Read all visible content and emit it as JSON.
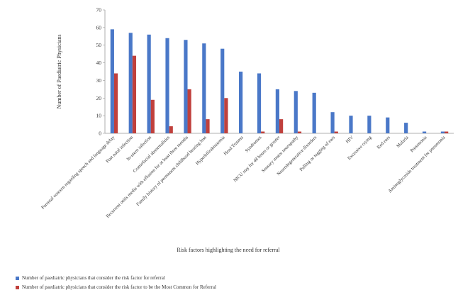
{
  "chart_data": {
    "type": "bar",
    "xlabel": "Risk factors highlighting the need for referral",
    "ylabel": "Number of Paediatric Physicians",
    "ylim": [
      0,
      70
    ],
    "yticks": [
      0,
      10,
      20,
      30,
      40,
      50,
      60,
      70
    ],
    "grid": false,
    "legend_position": "bottom-left",
    "categories": [
      "Parental concern regarding speech and language delay",
      "Post natal infection",
      "In-utero infection",
      "Craniofacial abnormalities",
      "Recurrent otitis media with effusion for at least three months",
      "Family history of permanent childhood hearing loss",
      "Hyperbilirubinaemia",
      "Head Trauma",
      "Syndromes",
      "NICU stay for 48 hours or greater",
      "Sensory motor neuropathy",
      "Neurodegenerative disorders",
      "Pulling or tugging of ears",
      "HIV",
      "Excessive crying",
      "Red ears",
      "Malaria",
      "Pneumonia",
      "Aminoglycoside treatment for pneumonia"
    ],
    "series": [
      {
        "name": "Number of paediatric physicians that consider the risk factor for referral",
        "color": "#4a78c8",
        "values": [
          59,
          57,
          56,
          54,
          53,
          51,
          48,
          35,
          34,
          25,
          24,
          23,
          12,
          10,
          10,
          9,
          6,
          1,
          1
        ]
      },
      {
        "name": "Number of paediatric physicians that consider the risk factor to be the Most Common for Referral",
        "color": "#c0403c",
        "values": [
          34,
          44,
          19,
          4,
          25,
          8,
          20,
          0,
          1,
          8,
          1,
          0,
          1,
          0,
          0,
          0,
          0,
          0,
          1
        ]
      }
    ]
  }
}
